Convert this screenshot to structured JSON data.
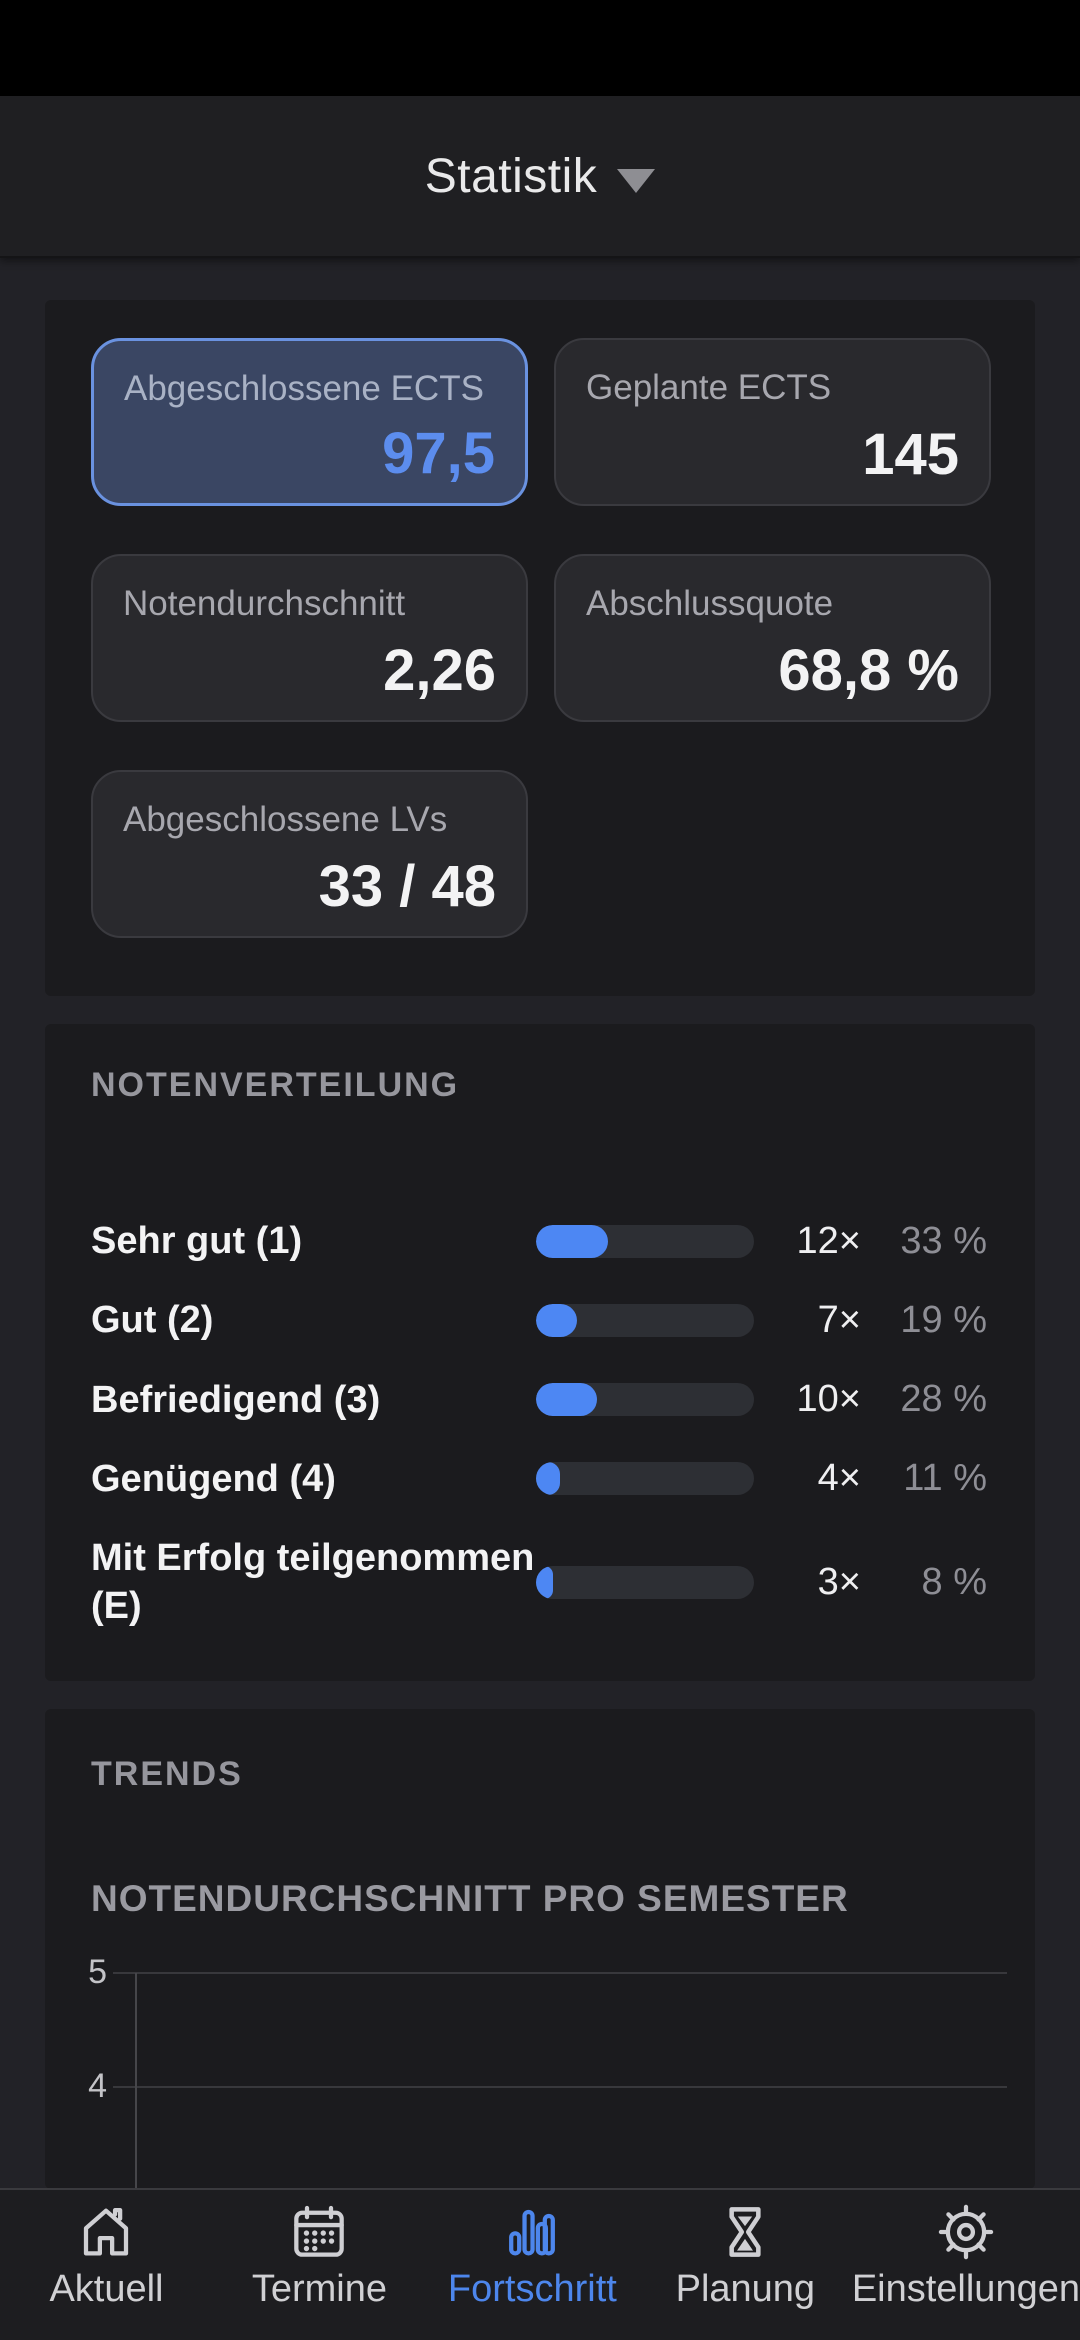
{
  "header": {
    "title": "Statistik"
  },
  "stats_cards": [
    {
      "label": "Abgeschlossene ECTS",
      "value": "97,5",
      "selected": true
    },
    {
      "label": "Geplante ECTS",
      "value": "145",
      "selected": false
    },
    {
      "label": "Notendurchschnitt",
      "value": "2,26",
      "selected": false
    },
    {
      "label": "Abschlussquote",
      "value": "68,8 %",
      "selected": false
    },
    {
      "label": "Abgeschlossene LVs",
      "value": "33 / 48",
      "selected": false
    }
  ],
  "distribution": {
    "title": "NOTENVERTEILUNG",
    "rows": [
      {
        "label": "Sehr gut (1)",
        "count": "12×",
        "percent": "33 %",
        "pct": 33
      },
      {
        "label": "Gut (2)",
        "count": "7×",
        "percent": "19 %",
        "pct": 19
      },
      {
        "label": "Befriedigend (3)",
        "count": "10×",
        "percent": "28 %",
        "pct": 28
      },
      {
        "label": "Genügend (4)",
        "count": "4×",
        "percent": "11 %",
        "pct": 11
      },
      {
        "label": "Mit Erfolg teilgenommen (E)",
        "count": "3×",
        "percent": "8 %",
        "pct": 8
      }
    ]
  },
  "trends": {
    "title": "TRENDS",
    "chart_title": "NOTENDURCHSCHNITT PRO SEMESTER",
    "ytick_5": "5",
    "ytick_4": "4"
  },
  "chart_data": [
    {
      "type": "bar",
      "orientation": "horizontal",
      "title": "Notenverteilung",
      "categories": [
        "Sehr gut (1)",
        "Gut (2)",
        "Befriedigend (3)",
        "Genügend (4)",
        "Mit Erfolg teilgenommen (E)"
      ],
      "series": [
        {
          "name": "Anzahl",
          "values": [
            12,
            7,
            10,
            4,
            3
          ]
        },
        {
          "name": "Prozent",
          "values": [
            33,
            19,
            28,
            11,
            8
          ]
        }
      ],
      "bar_color": "#4D87F3",
      "track_color": "#2D2F34"
    },
    {
      "type": "line",
      "title": "NOTENDURCHSCHNITT PRO SEMESTER",
      "visible_yticks": [
        5,
        4
      ],
      "grid": true,
      "series": [],
      "x": []
    }
  ],
  "tabbar": [
    {
      "label": "Aktuell",
      "icon": "home-icon",
      "active": false
    },
    {
      "label": "Termine",
      "icon": "calendar-icon",
      "active": false
    },
    {
      "label": "Fortschritt",
      "icon": "bar-chart-icon",
      "active": true
    },
    {
      "label": "Planung",
      "icon": "hourglass-icon",
      "active": false
    },
    {
      "label": "Einstellungen",
      "icon": "gear-icon",
      "active": false
    }
  ],
  "colors": {
    "accent": "#4D87F3",
    "selected_card_bg": "#3A4663",
    "selected_card_border": "#6A92E0",
    "selected_card_value": "#5C8DEE",
    "section_bg": "#1B1B1E",
    "page_bg": "#222227",
    "tabbar_bg": "#1D1D20"
  }
}
